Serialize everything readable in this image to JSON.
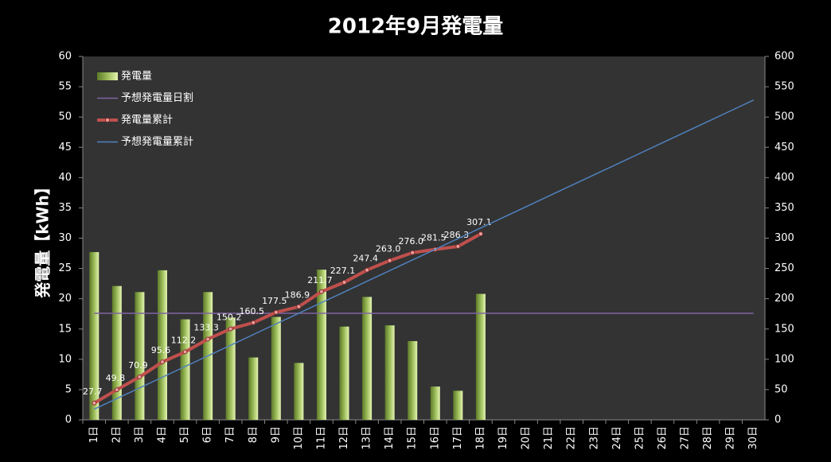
{
  "chart_data": {
    "type": "bar",
    "title": "2012年9月発電量",
    "y_label": "発電量【kWh】",
    "categories": [
      "1日",
      "2日",
      "3日",
      "4日",
      "5日",
      "6日",
      "7日",
      "8日",
      "9日",
      "10日",
      "11日",
      "12日",
      "13日",
      "14日",
      "15日",
      "16日",
      "17日",
      "18日",
      "19日",
      "20日",
      "21日",
      "22日",
      "23日",
      "24日",
      "25日",
      "26日",
      "27日",
      "28日",
      "29日",
      "30日"
    ],
    "series": [
      {
        "name": "発電量",
        "type": "bar",
        "color": "#9bbb59",
        "axis": "y",
        "values": [
          27.7,
          22.1,
          21.1,
          24.7,
          16.6,
          21.1,
          16.9,
          10.3,
          17.0,
          9.4,
          24.8,
          15.4,
          20.3,
          15.6,
          13.0,
          5.5,
          4.8,
          20.8,
          null,
          null,
          null,
          null,
          null,
          null,
          null,
          null,
          null,
          null,
          null,
          null
        ]
      },
      {
        "name": "予想発電量日割",
        "type": "line",
        "color": "#8064a2",
        "axis": "y",
        "values": [
          17.6,
          17.6,
          17.6,
          17.6,
          17.6,
          17.6,
          17.6,
          17.6,
          17.6,
          17.6,
          17.6,
          17.6,
          17.6,
          17.6,
          17.6,
          17.6,
          17.6,
          17.6,
          17.6,
          17.6,
          17.6,
          17.6,
          17.6,
          17.6,
          17.6,
          17.6,
          17.6,
          17.6,
          17.6,
          17.6
        ]
      },
      {
        "name": "発電量累計",
        "type": "line",
        "color": "#c0504d",
        "axis": "y2",
        "markers": true,
        "values": [
          27.7,
          49.8,
          70.9,
          95.6,
          112.2,
          133.3,
          150.2,
          160.5,
          177.5,
          186.9,
          211.7,
          227.1,
          247.4,
          263.0,
          276.0,
          281.5,
          286.3,
          307.1,
          null,
          null,
          null,
          null,
          null,
          null,
          null,
          null,
          null,
          null,
          null,
          null
        ],
        "value_labels": [
          "27.7",
          "49.8",
          "70.9",
          "95.6",
          "112.2",
          "133.3",
          "150.2",
          "160.5",
          "177.5",
          "186.9",
          "211.7",
          "227.1",
          "247.4",
          "263.0",
          "276.0",
          "281.5",
          "286.3",
          "307.1",
          null,
          null,
          null,
          null,
          null,
          null,
          null,
          null,
          null,
          null,
          null,
          null
        ]
      },
      {
        "name": "予想発電量累計",
        "type": "line",
        "color": "#4f81bd",
        "axis": "y2",
        "values": [
          17.6,
          35.2,
          52.8,
          70.4,
          88,
          105.6,
          123.2,
          140.8,
          158.4,
          176,
          193.6,
          211.2,
          228.8,
          246.4,
          264,
          281.6,
          299.2,
          316.8,
          334.4,
          352,
          369.6,
          387.2,
          404.8,
          422.4,
          440,
          457.6,
          475.2,
          492.8,
          510.4,
          528
        ]
      }
    ],
    "ylim": [
      0,
      60
    ],
    "yticks": [
      0,
      5,
      10,
      15,
      20,
      25,
      30,
      35,
      40,
      45,
      50,
      55,
      60
    ],
    "y2lim": [
      0,
      600
    ],
    "y2ticks": [
      0,
      50,
      100,
      150,
      200,
      250,
      300,
      350,
      400,
      450,
      500,
      550,
      600
    ],
    "grid": false,
    "legend": "top-left"
  }
}
